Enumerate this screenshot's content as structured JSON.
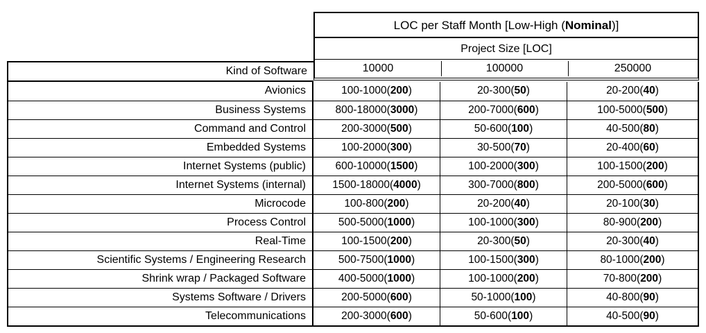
{
  "table": {
    "title": {
      "prefix": "LOC per Staff Month [Low-High (",
      "bold": "Nominal",
      "suffix": ")]"
    },
    "subtitle": "Project Size [LOC]",
    "kind_header": "Kind of Software",
    "size_headers": [
      "10000",
      "100000",
      "250000"
    ],
    "rows": [
      {
        "kind": "Avionics",
        "cells": [
          {
            "range": "100-1000",
            "nominal": "200"
          },
          {
            "range": "20-300",
            "nominal": "50"
          },
          {
            "range": "20-200",
            "nominal": "40"
          }
        ]
      },
      {
        "kind": "Business Systems",
        "cells": [
          {
            "range": "800-18000",
            "nominal": "3000"
          },
          {
            "range": "200-7000",
            "nominal": "600"
          },
          {
            "range": "100-5000",
            "nominal": "500"
          }
        ]
      },
      {
        "kind": "Command and Control",
        "cells": [
          {
            "range": "200-3000",
            "nominal": "500"
          },
          {
            "range": "50-600",
            "nominal": "100"
          },
          {
            "range": "40-500",
            "nominal": "80"
          }
        ]
      },
      {
        "kind": "Embedded Systems",
        "cells": [
          {
            "range": "100-2000",
            "nominal": "300"
          },
          {
            "range": "30-500",
            "nominal": "70"
          },
          {
            "range": "20-400",
            "nominal": "60"
          }
        ]
      },
      {
        "kind": "Internet Systems (public)",
        "cells": [
          {
            "range": "600-10000",
            "nominal": "1500"
          },
          {
            "range": "100-2000",
            "nominal": "300"
          },
          {
            "range": "100-1500",
            "nominal": "200"
          }
        ]
      },
      {
        "kind": "Internet Systems (internal)",
        "cells": [
          {
            "range": "1500-18000",
            "nominal": "4000"
          },
          {
            "range": "300-7000",
            "nominal": "800"
          },
          {
            "range": "200-5000",
            "nominal": "600"
          }
        ]
      },
      {
        "kind": "Microcode",
        "cells": [
          {
            "range": "100-800",
            "nominal": "200"
          },
          {
            "range": "20-200",
            "nominal": "40"
          },
          {
            "range": "20-100",
            "nominal": "30"
          }
        ]
      },
      {
        "kind": "Process Control",
        "cells": [
          {
            "range": "500-5000",
            "nominal": "1000"
          },
          {
            "range": "100-1000",
            "nominal": "300"
          },
          {
            "range": "80-900",
            "nominal": "200"
          }
        ]
      },
      {
        "kind": "Real-Time",
        "cells": [
          {
            "range": "100-1500",
            "nominal": "200"
          },
          {
            "range": "20-300",
            "nominal": "50"
          },
          {
            "range": "20-300",
            "nominal": "40"
          }
        ]
      },
      {
        "kind": "Scientific Systems / Engineering Research",
        "cells": [
          {
            "range": "500-7500",
            "nominal": "1000"
          },
          {
            "range": "100-1500",
            "nominal": "300"
          },
          {
            "range": "80-1000",
            "nominal": "200"
          }
        ]
      },
      {
        "kind": "Shrink wrap / Packaged Software",
        "cells": [
          {
            "range": "400-5000",
            "nominal": "1000"
          },
          {
            "range": "100-1000",
            "nominal": "200"
          },
          {
            "range": "70-800",
            "nominal": "200"
          }
        ]
      },
      {
        "kind": "Systems Software / Drivers",
        "cells": [
          {
            "range": "200-5000",
            "nominal": "600"
          },
          {
            "range": "50-1000",
            "nominal": "100"
          },
          {
            "range": "40-800",
            "nominal": "90"
          }
        ]
      },
      {
        "kind": "Telecommunications",
        "cells": [
          {
            "range": "200-3000",
            "nominal": "600"
          },
          {
            "range": "50-600",
            "nominal": "100"
          },
          {
            "range": "40-500",
            "nominal": "90"
          }
        ]
      }
    ]
  }
}
